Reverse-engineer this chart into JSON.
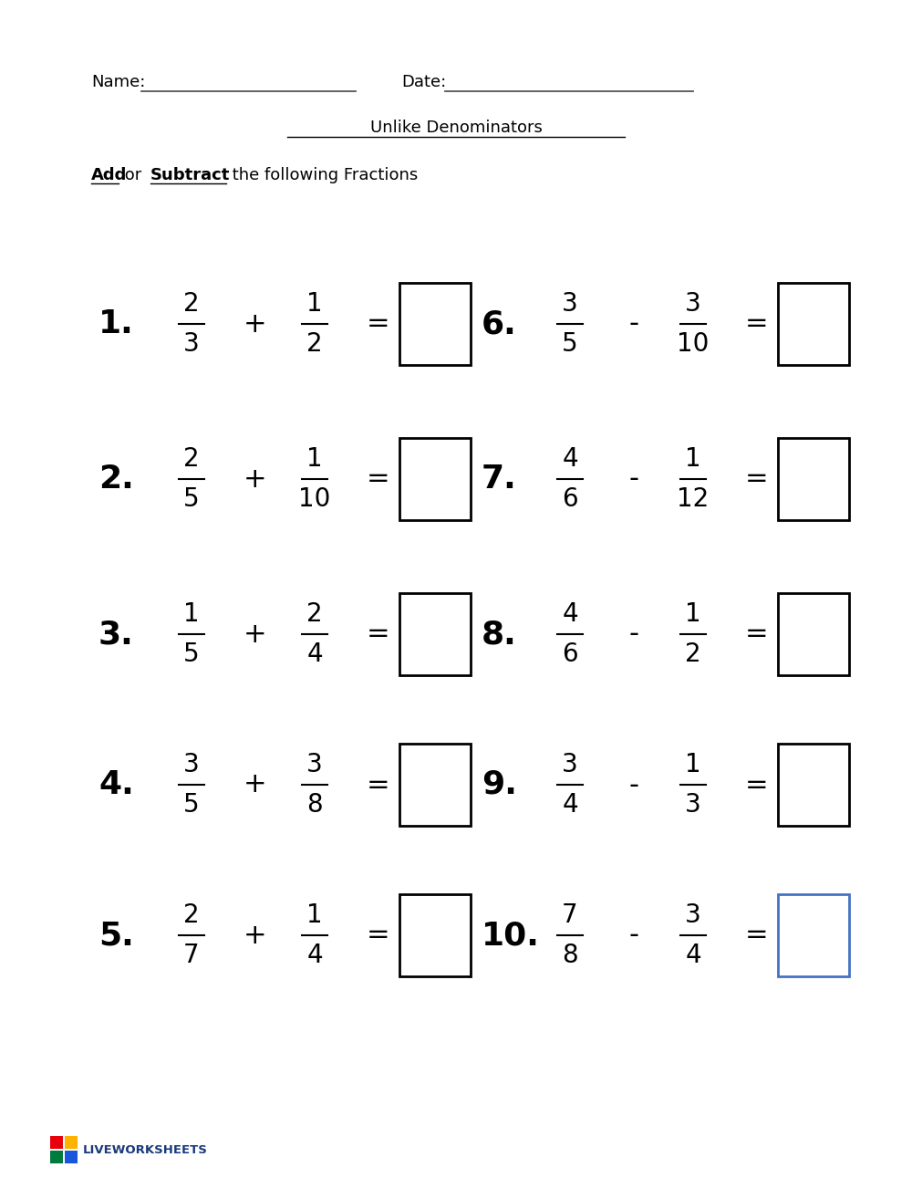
{
  "title": "Unlike Denominators",
  "instruction_bold1": "Add",
  "instruction_normal": " or ",
  "instruction_bold2": "Subtract",
  "instruction_end": " the following Fractions",
  "name_label": "Name:",
  "date_label": "Date:",
  "problems": [
    {
      "num": "1.",
      "n1": "2",
      "d1": "3",
      "op": "+",
      "n2": "1",
      "d2": "2"
    },
    {
      "num": "2.",
      "n1": "2",
      "d1": "5",
      "op": "+",
      "n2": "1",
      "d2": "10"
    },
    {
      "num": "3.",
      "n1": "1",
      "d1": "5",
      "op": "+",
      "n2": "2",
      "d2": "4"
    },
    {
      "num": "4.",
      "n1": "3",
      "d1": "5",
      "op": "+",
      "n2": "3",
      "d2": "8"
    },
    {
      "num": "5.",
      "n1": "2",
      "d1": "7",
      "op": "+",
      "n2": "1",
      "d2": "4"
    },
    {
      "num": "6.",
      "n1": "3",
      "d1": "5",
      "op": "-",
      "n2": "3",
      "d2": "10"
    },
    {
      "num": "7.",
      "n1": "4",
      "d1": "6",
      "op": "-",
      "n2": "1",
      "d2": "12"
    },
    {
      "num": "8.",
      "n1": "4",
      "d1": "6",
      "op": "-",
      "n2": "1",
      "d2": "2"
    },
    {
      "num": "9.",
      "n1": "3",
      "d1": "4",
      "op": "-",
      "n2": "1",
      "d2": "3"
    },
    {
      "num": "10.",
      "n1": "7",
      "d1": "8",
      "op": "-",
      "n2": "3",
      "d2": "4"
    }
  ],
  "box_colors": [
    "#000000",
    "#000000",
    "#000000",
    "#000000",
    "#000000",
    "#000000",
    "#000000",
    "#000000",
    "#000000",
    "#4472c4"
  ],
  "bg_color": "#ffffff",
  "text_color": "#000000",
  "liveworksheets_colors": [
    "#e8000d",
    "#ffb300",
    "#007a3d",
    "#1a56db"
  ]
}
